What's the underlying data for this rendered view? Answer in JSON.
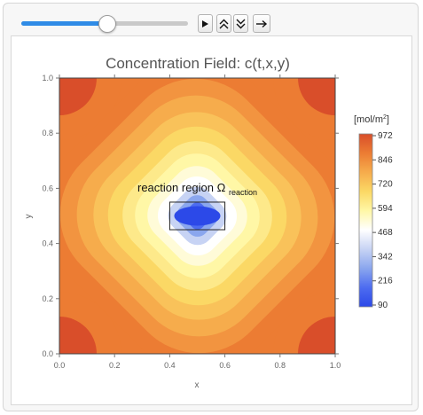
{
  "controls": {
    "slider_value": 0.52,
    "play_icon": "play-icon",
    "faster_icon": "double-chevron-up-icon",
    "slower_icon": "double-chevron-down-icon",
    "direction_icon": "arrow-right-icon"
  },
  "chart_data": {
    "type": "heatmap",
    "title": "Concentration Field: c(t,x,y)",
    "xlabel": "x",
    "ylabel": "y",
    "xlim": [
      0,
      1
    ],
    "ylim": [
      0,
      1
    ],
    "x_ticks": [
      "0.0",
      "0.2",
      "0.4",
      "0.6",
      "0.8",
      "1.0"
    ],
    "y_ticks": [
      "0.0",
      "0.2",
      "0.4",
      "0.6",
      "0.8",
      "1.0"
    ],
    "annotation": {
      "text": "reaction region Ω",
      "subscript": "reaction",
      "region": {
        "x": [
          0.4,
          0.6
        ],
        "y": [
          0.45,
          0.55
        ]
      }
    },
    "colorbar": {
      "label": "[mol/m",
      "label_sup": "2",
      "label_end": "]",
      "range": [
        90,
        972
      ],
      "ticks": [
        "972",
        "846",
        "720",
        "594",
        "468",
        "342",
        "216",
        "90"
      ],
      "colors": [
        "#d94e2a",
        "#ec7c33",
        "#f6ac4c",
        "#fbd865",
        "#fff7a6",
        "#ffffff",
        "#c7d3f4",
        "#8aa6ee",
        "#4d6cf0",
        "#2c49e8"
      ]
    }
  }
}
